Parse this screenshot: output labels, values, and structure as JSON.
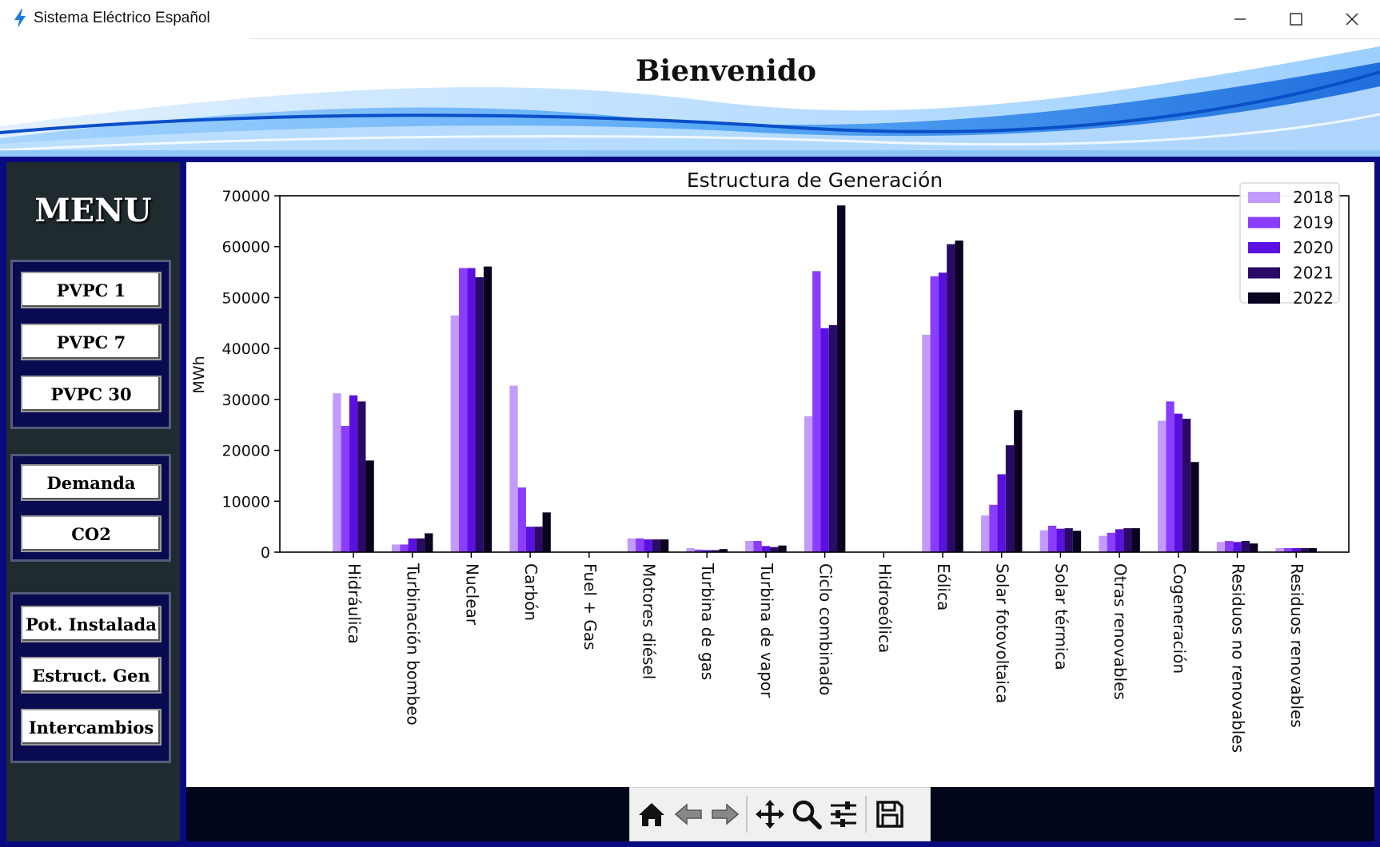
{
  "window": {
    "title": "Sistema Eléctrico Español",
    "icon": "lightning-icon",
    "controls": [
      "minimize-icon",
      "maximize-icon",
      "close-icon"
    ]
  },
  "header": {
    "title": "Bienvenido"
  },
  "menu": {
    "title": "MENU",
    "groups": [
      {
        "buttons": [
          "PVPC 1",
          "PVPC 7",
          "PVPC 30"
        ]
      },
      {
        "buttons": [
          "Demanda",
          "CO2"
        ]
      },
      {
        "buttons": [
          "Pot. Instalada",
          "Estruct. Gen",
          "Intercambios"
        ]
      }
    ]
  },
  "toolbar": {
    "tools": [
      "home-icon",
      "back-arrow-icon",
      "forward-arrow-icon",
      "pan-icon",
      "zoom-icon",
      "configure-subplots-icon",
      "save-icon"
    ]
  },
  "colors": {
    "title_accent": "#1e90ff",
    "frame": "#0a0a80",
    "menu_bg": "#1f2b2e",
    "series": [
      "#c29bff",
      "#8a3cff",
      "#5a10e0",
      "#2a0a66",
      "#0a0320"
    ]
  },
  "chart_data": {
    "type": "bar",
    "title": "Estructura de Generación",
    "xlabel": "",
    "ylabel": "MWh",
    "ylim": [
      0,
      70000
    ],
    "yticks": [
      0,
      10000,
      20000,
      30000,
      40000,
      50000,
      60000,
      70000
    ],
    "legend_position": "top-right",
    "grid": false,
    "categories": [
      "Hidráulica",
      "Turbinación bombeo",
      "Nuclear",
      "Carbón",
      "Fuel + Gas",
      "Motores diésel",
      "Turbina de gas",
      "Turbina de vapor",
      "Ciclo combinado",
      "Hidroeólica",
      "Eólica",
      "Solar fotovoltaica",
      "Solar térmica",
      "Otras renovables",
      "Cogeneración",
      "Residuos no renovables",
      "Residuos renovables"
    ],
    "series": [
      {
        "name": "2018",
        "values": [
          31200,
          1500,
          46500,
          32700,
          0,
          2700,
          800,
          2200,
          26700,
          0,
          42700,
          7200,
          4300,
          3200,
          25800,
          2000,
          800
        ]
      },
      {
        "name": "2019",
        "values": [
          24800,
          1500,
          55800,
          12700,
          0,
          2700,
          500,
          2200,
          55200,
          0,
          54200,
          9300,
          5200,
          3800,
          29600,
          2200,
          800
        ]
      },
      {
        "name": "2020",
        "values": [
          30800,
          2700,
          55800,
          5000,
          0,
          2500,
          400,
          1200,
          44000,
          0,
          54900,
          15300,
          4600,
          4500,
          27200,
          2000,
          800
        ]
      },
      {
        "name": "2021",
        "values": [
          29600,
          2700,
          54000,
          5000,
          0,
          2500,
          400,
          1000,
          44600,
          0,
          60500,
          21000,
          4700,
          4700,
          26200,
          2200,
          800
        ]
      },
      {
        "name": "2022",
        "values": [
          18000,
          3700,
          56100,
          7800,
          0,
          2500,
          600,
          1300,
          68100,
          0,
          61200,
          27900,
          4200,
          4700,
          17700,
          1700,
          800
        ]
      }
    ]
  }
}
